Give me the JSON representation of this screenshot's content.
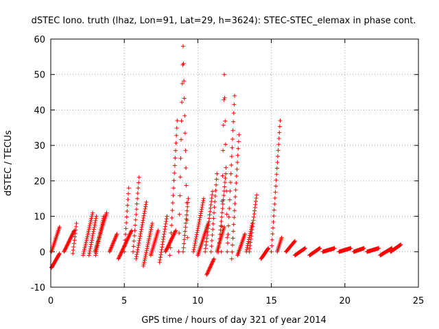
{
  "chart_data": {
    "type": "scatter",
    "title": "dSTEC Iono. truth (lhaz, Lon=91, Lat=29, h=3624): STEC-STEC_elemax in phase cont.",
    "xlabel": "GPS time / hours of day 321 of year 2014",
    "ylabel": "dSTEC  / TECUs",
    "xlim": [
      0,
      25
    ],
    "ylim": [
      -10,
      60
    ],
    "xticks": [
      0,
      5,
      10,
      15,
      20,
      25
    ],
    "yticks": [
      -10,
      0,
      10,
      20,
      30,
      40,
      50,
      60
    ],
    "grid": true,
    "marker": "+",
    "color": "#ff0000",
    "arcs": [
      {
        "x0": 0.05,
        "x1": 0.6,
        "y0": -4.5,
        "y1": -0.5,
        "ypeak": null
      },
      {
        "x0": 0.05,
        "x1": 0.6,
        "y0": 0,
        "y1": 7,
        "ypeak": null
      },
      {
        "x0": 0.9,
        "x1": 1.6,
        "y0": 0,
        "y1": 6,
        "ypeak": null
      },
      {
        "x0": 1.5,
        "x1": 1.75,
        "y0": -0.5,
        "y1": 8,
        "ypeak": null
      },
      {
        "x0": 2.2,
        "x1": 2.85,
        "y0": -1,
        "y1": 11,
        "ypeak": null
      },
      {
        "x0": 2.6,
        "x1": 3.1,
        "y0": -1,
        "y1": 10,
        "ypeak": null
      },
      {
        "x0": 3.05,
        "x1": 3.6,
        "y0": -1,
        "y1": 10,
        "ypeak": null
      },
      {
        "x0": 3.0,
        "x1": 3.8,
        "y0": 0,
        "y1": 11,
        "ypeak": null
      },
      {
        "x0": 4.0,
        "x1": 4.5,
        "y0": 0,
        "y1": 5,
        "ypeak": null
      },
      {
        "x0": 4.6,
        "x1": 5.5,
        "y0": -2,
        "y1": 6,
        "ypeak": null
      },
      {
        "x0": 5.0,
        "x1": 5.3,
        "y0": 0,
        "y1": 18,
        "ypeak": null
      },
      {
        "x0": 5.6,
        "x1": 6.0,
        "y0": 0,
        "y1": 21,
        "ypeak": null
      },
      {
        "x0": 5.8,
        "x1": 6.5,
        "y0": -2,
        "y1": 14,
        "ypeak": null
      },
      {
        "x0": 6.3,
        "x1": 6.9,
        "y0": -4,
        "y1": 8,
        "ypeak": null
      },
      {
        "x0": 6.8,
        "x1": 7.3,
        "y0": -1,
        "y1": 6,
        "ypeak": null
      },
      {
        "x0": 7.4,
        "x1": 7.9,
        "y0": -3,
        "y1": 10,
        "ypeak": null
      },
      {
        "x0": 7.8,
        "x1": 8.5,
        "y0": 0,
        "y1": 6,
        "ypeak": null
      },
      {
        "x0": 8.1,
        "x1": 8.6,
        "y0": -1,
        "y1": 37,
        "ypeak": null
      },
      {
        "x0": 8.7,
        "x1": 9.3,
        "y0": 0,
        "y1": 4,
        "ypeak": 58
      },
      {
        "x0": 9.0,
        "x1": 9.35,
        "y0": 0,
        "y1": 15,
        "ypeak": null
      },
      {
        "x0": 9.7,
        "x1": 10.4,
        "y0": 0,
        "y1": 15,
        "ypeak": null
      },
      {
        "x0": 10.0,
        "x1": 10.7,
        "y0": -1,
        "y1": 8,
        "ypeak": null
      },
      {
        "x0": 10.5,
        "x1": 11.0,
        "y0": 0,
        "y1": 17,
        "ypeak": null
      },
      {
        "x0": 10.6,
        "x1": 11.1,
        "y0": -6.5,
        "y1": -2,
        "ypeak": null
      },
      {
        "x0": 10.9,
        "x1": 11.3,
        "y0": 0,
        "y1": 22,
        "ypeak": null
      },
      {
        "x0": 11.3,
        "x1": 11.8,
        "y0": 0,
        "y1": 7,
        "ypeak": null
      },
      {
        "x0": 11.4,
        "x1": 11.9,
        "y0": 0,
        "y1": 22,
        "ypeak": null
      },
      {
        "x0": 11.6,
        "x1": 12.0,
        "y0": 0,
        "y1": 4,
        "ypeak": 50
      },
      {
        "x0": 12.0,
        "x1": 12.5,
        "y0": 0,
        "y1": 44,
        "ypeak": null
      },
      {
        "x0": 12.3,
        "x1": 12.8,
        "y0": -2,
        "y1": 33,
        "ypeak": null
      },
      {
        "x0": 12.7,
        "x1": 13.2,
        "y0": -1,
        "y1": 5,
        "ypeak": null
      },
      {
        "x0": 13.3,
        "x1": 13.7,
        "y0": 0,
        "y1": 8,
        "ypeak": null
      },
      {
        "x0": 13.5,
        "x1": 14.0,
        "y0": 0,
        "y1": 16,
        "ypeak": null
      },
      {
        "x0": 14.3,
        "x1": 14.8,
        "y0": -2,
        "y1": 1,
        "ypeak": null
      },
      {
        "x0": 15.0,
        "x1": 15.6,
        "y0": 0,
        "y1": 37,
        "ypeak": null
      },
      {
        "x0": 15.4,
        "x1": 15.7,
        "y0": 0,
        "y1": 4,
        "ypeak": null
      },
      {
        "x0": 16.0,
        "x1": 16.6,
        "y0": 0,
        "y1": 3,
        "ypeak": null
      },
      {
        "x0": 16.6,
        "x1": 17.3,
        "y0": -1,
        "y1": 1,
        "ypeak": null
      },
      {
        "x0": 17.6,
        "x1": 18.3,
        "y0": -1,
        "y1": 1,
        "ypeak": null
      },
      {
        "x0": 18.5,
        "x1": 19.3,
        "y0": 0,
        "y1": 1,
        "ypeak": null
      },
      {
        "x0": 19.6,
        "x1": 20.4,
        "y0": 0,
        "y1": 1,
        "ypeak": null
      },
      {
        "x0": 20.6,
        "x1": 21.3,
        "y0": 0,
        "y1": 1,
        "ypeak": null
      },
      {
        "x0": 21.5,
        "x1": 22.3,
        "y0": 0,
        "y1": 1,
        "ypeak": null
      },
      {
        "x0": 22.4,
        "x1": 23.2,
        "y0": -1,
        "y1": 1,
        "ypeak": null
      },
      {
        "x0": 23.1,
        "x1": 23.8,
        "y0": 0,
        "y1": 2,
        "ypeak": null
      }
    ]
  }
}
